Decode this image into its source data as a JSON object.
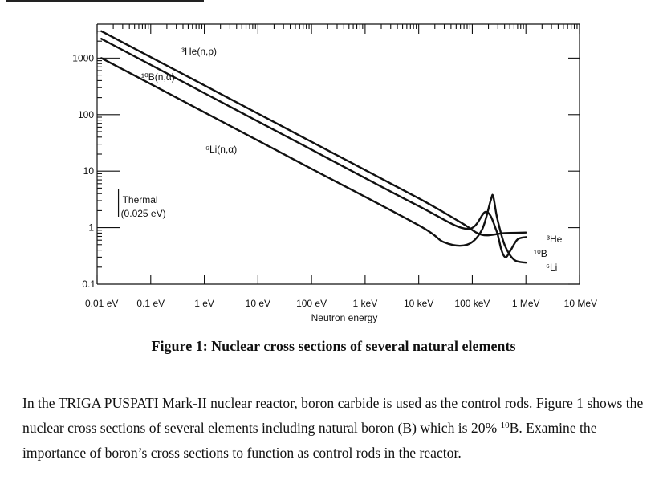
{
  "chart_data": {
    "type": "line",
    "title": "",
    "xlabel": "Neutron energy",
    "ylabel": "",
    "x_scale": "log",
    "y_scale": "log",
    "xlim": [
      0.01,
      10000000
    ],
    "ylim": [
      0.1,
      4000
    ],
    "x_ticks": [
      {
        "value": 0.01,
        "label": "0.01 eV"
      },
      {
        "value": 0.1,
        "label": "0.1 eV"
      },
      {
        "value": 1,
        "label": "1 eV"
      },
      {
        "value": 10,
        "label": "10 eV"
      },
      {
        "value": 100,
        "label": "100 eV"
      },
      {
        "value": 1000,
        "label": "1 keV"
      },
      {
        "value": 10000,
        "label": "10 keV"
      },
      {
        "value": 100000,
        "label": "100 keV"
      },
      {
        "value": 1000000,
        "label": "1 MeV"
      },
      {
        "value": 10000000,
        "label": "10 MeV"
      }
    ],
    "y_ticks": [
      {
        "value": 0.1,
        "label": "0.1"
      },
      {
        "value": 1,
        "label": "1"
      },
      {
        "value": 10,
        "label": "10"
      },
      {
        "value": 100,
        "label": "100"
      },
      {
        "value": 1000,
        "label": "1000"
      }
    ],
    "series": [
      {
        "name": "He3",
        "label": "³He(n,p)",
        "end_label": "³He",
        "x": [
          0.012,
          1,
          100,
          10000,
          60000,
          150000,
          400000,
          1000000
        ],
        "y": [
          3000,
          330,
          33,
          3.3,
          1.25,
          0.75,
          0.8,
          0.82
        ]
      },
      {
        "name": "B10",
        "label": "¹⁰B(n,α)",
        "end_label": "¹⁰B",
        "x": [
          0.012,
          1,
          100,
          10000,
          80000,
          180000,
          280000,
          350000,
          420000,
          520000,
          700000,
          1000000
        ],
        "y": [
          2200,
          240,
          24,
          2.4,
          0.95,
          1.9,
          0.9,
          0.4,
          0.3,
          0.4,
          0.62,
          0.68
        ]
      },
      {
        "name": "Li6",
        "label": "⁶Li(n,α)",
        "end_label": "⁶Li",
        "x": [
          0.012,
          1,
          100,
          10000,
          30000,
          80000,
          150000,
          220000,
          245000,
          290000,
          400000,
          600000,
          1000000
        ],
        "y": [
          1000,
          110,
          11,
          1.1,
          0.55,
          0.5,
          0.9,
          3.0,
          3.6,
          1.5,
          0.5,
          0.27,
          0.24
        ]
      }
    ],
    "annotations": [
      {
        "text": "Thermal",
        "x": 0.025
      },
      {
        "text": "(0.025 eV)",
        "x": 0.025
      }
    ]
  },
  "caption": "Figure 1: Nuclear cross sections of several natural elements",
  "paragraph": {
    "part1": "In the TRIGA PUSPATI Mark-II nuclear reactor, boron carbide is used as the control rods. Figure 1 shows the nuclear cross sections of several elements including natural boron (B) which is 20% ",
    "superscript": "10",
    "part2": "B. Examine the importance of boron’s cross sections to function as control rods in the reactor."
  }
}
